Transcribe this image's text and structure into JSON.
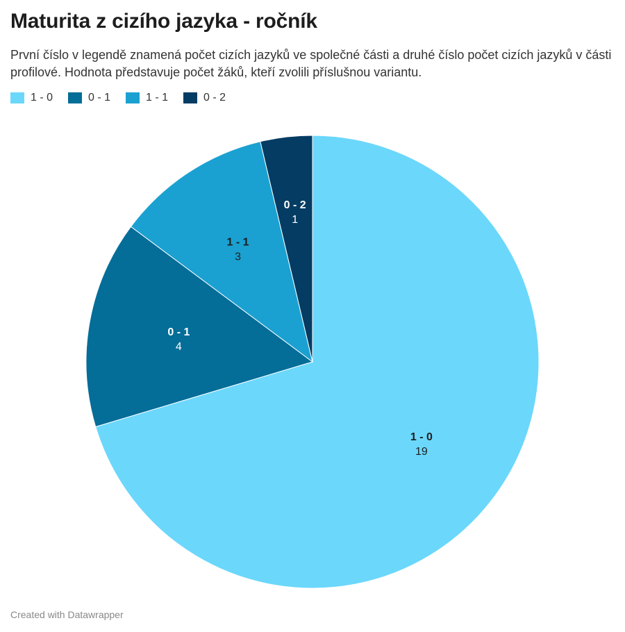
{
  "header": {
    "title": "Maturita z cizího jazyka - ročník",
    "subtitle": "První číslo v legendě znamená počet cizích jazyků ve společné části a druhé číslo počet cizích jazyků v části profilové. Hodnota představuje počet žáků, kteří zvolili příslušnou variantu."
  },
  "chart_data": {
    "type": "pie",
    "legend_position": "top-left",
    "slices": [
      {
        "label": "1 - 0",
        "value": 19,
        "color": "#6bd7fb",
        "label_color": "#1d1d1d"
      },
      {
        "label": "0 - 1",
        "value": 4,
        "color": "#046d98",
        "label_color": "#ffffff"
      },
      {
        "label": "1 - 1",
        "value": 3,
        "color": "#1aa1d1",
        "label_color": "#1d1d1d"
      },
      {
        "label": "0 - 2",
        "value": 1,
        "color": "#053c63",
        "label_color": "#ffffff"
      }
    ]
  },
  "footer": {
    "credit": "Created with Datawrapper"
  }
}
